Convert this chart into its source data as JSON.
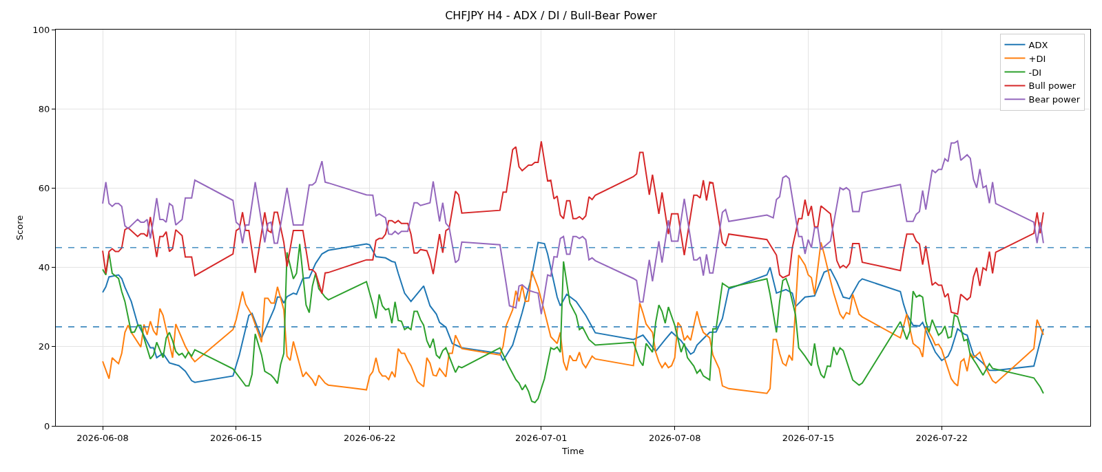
{
  "chart_data": {
    "type": "line",
    "title": "CHFJPY H4 - ADX / DI / Bull-Bear Power",
    "xlabel": "Time",
    "ylabel": "Score",
    "xlim": [
      "2026-06-05T13:00",
      "2026-07-29T19:00"
    ],
    "ylim": [
      0,
      100
    ],
    "yticks": [
      0,
      20,
      40,
      60,
      80,
      100
    ],
    "xticks": [
      "2026-06-08",
      "2026-06-15",
      "2026-06-22",
      "2026-07-01",
      "2026-07-08",
      "2026-07-15",
      "2026-07-22"
    ],
    "grid": true,
    "legend": "top right",
    "line_style": "solid",
    "ref_lines": [
      {
        "axis": "y",
        "value": 45,
        "color": "#1f77b4",
        "line_style": "dashed"
      },
      {
        "axis": "y",
        "value": 25,
        "color": "#1f77b4",
        "line_style": "dashed"
      }
    ],
    "series": [
      {
        "name": "ADX",
        "color": "#1f77b4",
        "x": [
          "2026-06-08T00:00",
          "2026-06-08T04:00",
          "2026-06-08T08:00",
          "2026-06-08T20:00",
          "2026-06-09T00:00",
          "2026-06-09T04:00",
          "2026-06-09T12:00",
          "2026-06-09T20:00",
          "2026-06-10T00:00",
          "2026-06-10T12:00",
          "2026-06-10T16:00",
          "2026-06-10T20:00",
          "2026-06-11T04:00",
          "2026-06-11T12:00",
          "2026-06-12T00:00",
          "2026-06-12T08:00",
          "2026-06-12T16:00",
          "2026-06-12T20:00",
          "2026-06-14T20:00",
          "2026-06-15T04:00",
          "2026-06-15T16:00",
          "2026-06-15T20:00",
          "2026-06-16T08:00",
          "2026-06-17T00:00",
          "2026-06-17T04:00",
          "2026-06-17T08:00",
          "2026-06-17T12:00",
          "2026-06-17T16:00",
          "2026-06-18T00:00",
          "2026-06-18T04:00",
          "2026-06-18T12:00",
          "2026-06-18T20:00",
          "2026-06-19T04:00",
          "2026-06-19T12:00",
          "2026-06-19T20:00",
          "2026-06-21T20:00",
          "2026-06-22T00:00",
          "2026-06-22T08:00",
          "2026-06-22T20:00",
          "2026-06-23T04:00",
          "2026-06-23T08:00",
          "2026-06-23T12:00",
          "2026-06-23T20:00",
          "2026-06-24T04:00",
          "2026-06-24T20:00",
          "2026-06-25T04:00",
          "2026-06-25T12:00",
          "2026-06-25T16:00",
          "2026-06-26T00:00",
          "2026-06-26T08:00",
          "2026-06-26T20:00",
          "2026-06-28T20:00",
          "2026-06-29T00:00",
          "2026-06-29T12:00",
          "2026-06-30T00:00",
          "2026-06-30T12:00",
          "2026-06-30T20:00",
          "2026-07-01T04:00",
          "2026-07-01T08:00",
          "2026-07-01T20:00",
          "2026-07-02T00:00",
          "2026-07-02T08:00",
          "2026-07-02T20:00",
          "2026-07-03T08:00",
          "2026-07-03T20:00",
          "2026-07-05T20:00",
          "2026-07-06T08:00",
          "2026-07-07T00:00",
          "2026-07-07T12:00",
          "2026-07-07T20:00",
          "2026-07-08T08:00",
          "2026-07-08T20:00",
          "2026-07-09T00:00",
          "2026-07-09T04:00",
          "2026-07-09T20:00",
          "2026-07-10T04:00",
          "2026-07-10T12:00",
          "2026-07-10T20:00",
          "2026-07-12T20:00",
          "2026-07-13T00:00",
          "2026-07-13T08:00",
          "2026-07-13T20:00",
          "2026-07-14T04:00",
          "2026-07-14T08:00",
          "2026-07-14T20:00",
          "2026-07-15T08:00",
          "2026-07-15T20:00",
          "2026-07-16T04:00",
          "2026-07-16T12:00",
          "2026-07-16T20:00",
          "2026-07-17T04:00",
          "2026-07-17T16:00",
          "2026-07-17T20:00",
          "2026-07-19T20:00",
          "2026-07-20T00:00",
          "2026-07-20T04:00",
          "2026-07-20T12:00",
          "2026-07-20T20:00",
          "2026-07-21T00:00",
          "2026-07-21T08:00",
          "2026-07-21T16:00",
          "2026-07-22T00:00",
          "2026-07-22T08:00",
          "2026-07-22T12:00",
          "2026-07-22T20:00",
          "2026-07-23T04:00",
          "2026-07-23T08:00",
          "2026-07-23T16:00",
          "2026-07-24T04:00",
          "2026-07-24T12:00",
          "2026-07-24T20:00",
          "2026-07-26T20:00",
          "2026-07-27T08:00"
        ],
        "values": [
          33.7,
          35.1,
          37.6,
          38.1,
          37.2,
          35,
          31.4,
          25.7,
          24.3,
          19.7,
          19.7,
          17.2,
          18.3,
          15.9,
          15.2,
          13.8,
          11.4,
          11,
          12.6,
          17.9,
          27.9,
          28.4,
          22.2,
          29.6,
          32.5,
          32.5,
          31,
          32.6,
          33.5,
          33.2,
          37.2,
          37.4,
          41,
          43.4,
          44.3,
          45.9,
          45.7,
          42.7,
          42.4,
          41.5,
          41.3,
          38.5,
          33.5,
          31.4,
          35.3,
          30.3,
          28.2,
          26.1,
          24.9,
          20.8,
          19.7,
          18.3,
          16.5,
          20.4,
          28.6,
          37.8,
          46.3,
          46,
          43.4,
          32.5,
          30.3,
          33.2,
          31.4,
          27.9,
          23.5,
          21.8,
          22.9,
          18.8,
          21.8,
          23.7,
          21.5,
          18.1,
          18.6,
          20.4,
          23.6,
          23.7,
          27.1,
          34.6,
          38.1,
          40,
          33.5,
          34.4,
          33.5,
          30.1,
          32.5,
          32.8,
          38.8,
          39.5,
          36.4,
          32.5,
          32.1,
          36.4,
          37.1,
          33.9,
          30.7,
          28.2,
          25.4,
          25.2,
          26.1,
          22.2,
          18.6,
          16.5,
          17.6,
          19.3,
          24.5,
          23.2,
          22.9,
          17.9,
          15.8,
          14,
          14,
          15.1,
          24.5
        ]
      },
      {
        "name": "+DI",
        "color": "#ff7f0e",
        "x": [
          "2026-06-08T00:00",
          "2026-06-08T08:00",
          "2026-06-08T12:00",
          "2026-06-08T16:00",
          "2026-06-08T20:00",
          "2026-06-09T00:00",
          "2026-06-09T04:00",
          "2026-06-09T08:00",
          "2026-06-09T12:00",
          "2026-06-10T00:00",
          "2026-06-10T04:00",
          "2026-06-10T08:00",
          "2026-06-10T12:00",
          "2026-06-10T16:00",
          "2026-06-10T20:00",
          "2026-06-11T00:00",
          "2026-06-11T04:00",
          "2026-06-11T16:00",
          "2026-06-11T20:00",
          "2026-06-12T08:00",
          "2026-06-12T16:00",
          "2026-06-12T20:00",
          "2026-06-14T20:00",
          "2026-06-15T00:00",
          "2026-06-15T08:00",
          "2026-06-15T12:00",
          "2026-06-15T20:00",
          "2026-06-16T08:00",
          "2026-06-16T12:00",
          "2026-06-16T16:00",
          "2026-06-16T20:00",
          "2026-06-17T00:00",
          "2026-06-17T04:00",
          "2026-06-17T12:00",
          "2026-06-17T16:00",
          "2026-06-17T20:00",
          "2026-06-18T00:00",
          "2026-06-18T12:00",
          "2026-06-18T16:00",
          "2026-06-19T00:00",
          "2026-06-19T04:00",
          "2026-06-19T08:00",
          "2026-06-19T16:00",
          "2026-06-19T20:00",
          "2026-06-21T20:00",
          "2026-06-22T00:00",
          "2026-06-22T04:00",
          "2026-06-22T08:00",
          "2026-06-22T12:00",
          "2026-06-22T16:00",
          "2026-06-22T20:00",
          "2026-06-23T00:00",
          "2026-06-23T04:00",
          "2026-06-23T08:00",
          "2026-06-23T12:00",
          "2026-06-23T16:00",
          "2026-06-23T20:00",
          "2026-06-24T00:00",
          "2026-06-24T04:00",
          "2026-06-24T12:00",
          "2026-06-24T20:00",
          "2026-06-25T00:00",
          "2026-06-25T04:00",
          "2026-06-25T08:00",
          "2026-06-25T12:00",
          "2026-06-25T16:00",
          "2026-06-26T00:00",
          "2026-06-26T04:00",
          "2026-06-26T08:00",
          "2026-06-26T12:00",
          "2026-06-26T20:00",
          "2026-06-28T20:00",
          "2026-06-29T00:00",
          "2026-06-29T04:00",
          "2026-06-29T12:00",
          "2026-06-29T16:00",
          "2026-06-29T20:00",
          "2026-06-30T00:00",
          "2026-06-30T04:00",
          "2026-06-30T08:00",
          "2026-06-30T12:00",
          "2026-06-30T20:00",
          "2026-07-01T04:00",
          "2026-07-01T12:00",
          "2026-07-01T20:00",
          "2026-07-02T00:00",
          "2026-07-02T04:00",
          "2026-07-02T08:00",
          "2026-07-02T12:00",
          "2026-07-02T16:00",
          "2026-07-02T20:00",
          "2026-07-03T00:00",
          "2026-07-03T04:00",
          "2026-07-03T08:00",
          "2026-07-03T16:00",
          "2026-07-03T20:00",
          "2026-07-05T20:00",
          "2026-07-06T04:00",
          "2026-07-06T08:00",
          "2026-07-06T12:00",
          "2026-07-06T20:00",
          "2026-07-07T00:00",
          "2026-07-07T04:00",
          "2026-07-07T08:00",
          "2026-07-07T12:00",
          "2026-07-07T16:00",
          "2026-07-07T20:00",
          "2026-07-08T00:00",
          "2026-07-08T04:00",
          "2026-07-08T08:00",
          "2026-07-08T12:00",
          "2026-07-08T16:00",
          "2026-07-08T20:00",
          "2026-07-09T04:00",
          "2026-07-09T08:00",
          "2026-07-09T12:00",
          "2026-07-09T20:00",
          "2026-07-10T00:00",
          "2026-07-10T08:00",
          "2026-07-10T12:00",
          "2026-07-10T20:00",
          "2026-07-12T20:00",
          "2026-07-13T00:00",
          "2026-07-13T04:00",
          "2026-07-13T08:00",
          "2026-07-13T12:00",
          "2026-07-13T16:00",
          "2026-07-13T20:00",
          "2026-07-14T00:00",
          "2026-07-14T04:00",
          "2026-07-14T12:00",
          "2026-07-14T20:00",
          "2026-07-15T00:00",
          "2026-07-15T04:00",
          "2026-07-15T08:00",
          "2026-07-15T16:00",
          "2026-07-15T20:00",
          "2026-07-16T04:00",
          "2026-07-16T08:00",
          "2026-07-16T16:00",
          "2026-07-16T20:00",
          "2026-07-17T00:00",
          "2026-07-17T04:00",
          "2026-07-17T08:00",
          "2026-07-17T16:00",
          "2026-07-17T20:00",
          "2026-07-19T20:00",
          "2026-07-20T04:00",
          "2026-07-20T12:00",
          "2026-07-20T20:00",
          "2026-07-21T00:00",
          "2026-07-21T04:00",
          "2026-07-21T12:00",
          "2026-07-21T16:00",
          "2026-07-21T20:00",
          "2026-07-22T00:00",
          "2026-07-22T12:00",
          "2026-07-22T16:00",
          "2026-07-22T20:00",
          "2026-07-23T00:00",
          "2026-07-23T04:00",
          "2026-07-23T08:00",
          "2026-07-23T12:00",
          "2026-07-23T16:00",
          "2026-07-24T00:00",
          "2026-07-24T08:00",
          "2026-07-24T16:00",
          "2026-07-24T20:00",
          "2026-07-26T20:00",
          "2026-07-27T00:00",
          "2026-07-27T08:00"
        ],
        "values": [
          16.3,
          11.9,
          17.2,
          16.4,
          15.7,
          18.3,
          23.6,
          25.4,
          23.6,
          19.9,
          25.6,
          23,
          26.4,
          24,
          22.9,
          29.6,
          27.9,
          17.2,
          25.7,
          20.1,
          17.2,
          16.2,
          24.3,
          26.8,
          33.9,
          30.7,
          27.9,
          21.1,
          32.2,
          32.2,
          31,
          31,
          35.1,
          29.3,
          17.6,
          16.5,
          21.3,
          12.4,
          13.5,
          11.6,
          10.1,
          12.8,
          10.8,
          10.3,
          9.1,
          12.6,
          13.7,
          17.2,
          13.7,
          12.6,
          12.6,
          11.7,
          13.7,
          12.3,
          19.5,
          18.3,
          18.3,
          16.5,
          15.2,
          11.2,
          9.9,
          17.2,
          15.8,
          12.8,
          12.6,
          14.5,
          12.4,
          18.3,
          18.3,
          22.9,
          19.5,
          17.9,
          20.1,
          25.4,
          29.3,
          34.1,
          31.4,
          35.5,
          31.4,
          31.5,
          39.1,
          34.9,
          28.9,
          22.5,
          20.8,
          23.6,
          16.2,
          14,
          17.8,
          16.5,
          16.5,
          18.6,
          15.8,
          14.7,
          17.6,
          16.9,
          15.2,
          31,
          28.5,
          25.7,
          23.6,
          18.6,
          16.2,
          14.7,
          15.9,
          14.7,
          15.2,
          17.2,
          26.1,
          25,
          21.6,
          22.7,
          21.6,
          28.9,
          25.7,
          23.6,
          22.2,
          17.9,
          14.4,
          10.1,
          9.4,
          8.2,
          9.4,
          21.8,
          21.8,
          18.3,
          15.8,
          15.2,
          17.9,
          16.5,
          43.1,
          40.6,
          38.1,
          37.4,
          33.2,
          46.3,
          43.4,
          36.7,
          33.5,
          28.2,
          27.1,
          28.6,
          28.2,
          33.2,
          28.2,
          27.5,
          22.2,
          28.2,
          20.8,
          19.5,
          17.4,
          25,
          22.2,
          20.4,
          20.6,
          19.3,
          11.9,
          10.8,
          10.1,
          16.2,
          16.9,
          13.8,
          18.3,
          17.2,
          18.6,
          14.5,
          11.4,
          10.8,
          19.5,
          26.8,
          23
        ]
      },
      {
        "name": "-DI",
        "color": "#2ca02c",
        "x": [
          "2026-06-08T00:00",
          "2026-06-08T04:00",
          "2026-06-08T08:00",
          "2026-06-08T12:00",
          "2026-06-08T20:00",
          "2026-06-09T00:00",
          "2026-06-09T04:00",
          "2026-06-09T12:00",
          "2026-06-09T16:00",
          "2026-06-09T20:00",
          "2026-06-10T00:00",
          "2026-06-10T04:00",
          "2026-06-10T12:00",
          "2026-06-10T16:00",
          "2026-06-10T20:00",
          "2026-06-11T04:00",
          "2026-06-11T08:00",
          "2026-06-11T12:00",
          "2026-06-11T16:00",
          "2026-06-11T20:00",
          "2026-06-12T00:00",
          "2026-06-12T04:00",
          "2026-06-12T08:00",
          "2026-06-12T12:00",
          "2026-06-12T16:00",
          "2026-06-12T20:00",
          "2026-06-14T20:00",
          "2026-06-15T08:00",
          "2026-06-15T12:00",
          "2026-06-15T16:00",
          "2026-06-15T20:00",
          "2026-06-16T00:00",
          "2026-06-16T08:00",
          "2026-06-16T12:00",
          "2026-06-16T20:00",
          "2026-06-17T00:00",
          "2026-06-17T04:00",
          "2026-06-17T08:00",
          "2026-06-17T12:00",
          "2026-06-17T16:00",
          "2026-06-18T00:00",
          "2026-06-18T04:00",
          "2026-06-18T08:00",
          "2026-06-18T16:00",
          "2026-06-18T20:00",
          "2026-06-19T00:00",
          "2026-06-19T04:00",
          "2026-06-19T08:00",
          "2026-06-19T16:00",
          "2026-06-19T20:00",
          "2026-06-21T20:00",
          "2026-06-22T04:00",
          "2026-06-22T08:00",
          "2026-06-22T12:00",
          "2026-06-22T16:00",
          "2026-06-22T20:00",
          "2026-06-23T00:00",
          "2026-06-23T04:00",
          "2026-06-23T08:00",
          "2026-06-23T12:00",
          "2026-06-23T16:00",
          "2026-06-23T20:00",
          "2026-06-24T00:00",
          "2026-06-24T04:00",
          "2026-06-24T08:00",
          "2026-06-24T12:00",
          "2026-06-24T16:00",
          "2026-06-24T20:00",
          "2026-06-25T00:00",
          "2026-06-25T04:00",
          "2026-06-25T08:00",
          "2026-06-25T12:00",
          "2026-06-25T16:00",
          "2026-06-25T20:00",
          "2026-06-26T00:00",
          "2026-06-26T04:00",
          "2026-06-26T12:00",
          "2026-06-26T16:00",
          "2026-06-26T20:00",
          "2026-06-28T20:00",
          "2026-06-29T08:00",
          "2026-06-29T16:00",
          "2026-06-29T20:00",
          "2026-06-30T00:00",
          "2026-06-30T04:00",
          "2026-06-30T08:00",
          "2026-06-30T12:00",
          "2026-06-30T16:00",
          "2026-06-30T20:00",
          "2026-07-01T04:00",
          "2026-07-01T12:00",
          "2026-07-01T16:00",
          "2026-07-01T20:00",
          "2026-07-02T00:00",
          "2026-07-02T04:00",
          "2026-07-02T12:00",
          "2026-07-02T20:00",
          "2026-07-03T00:00",
          "2026-07-03T04:00",
          "2026-07-03T12:00",
          "2026-07-03T20:00",
          "2026-07-05T20:00",
          "2026-07-06T04:00",
          "2026-07-06T08:00",
          "2026-07-06T12:00",
          "2026-07-06T20:00",
          "2026-07-07T00:00",
          "2026-07-07T04:00",
          "2026-07-07T08:00",
          "2026-07-07T12:00",
          "2026-07-07T16:00",
          "2026-07-08T00:00",
          "2026-07-08T08:00",
          "2026-07-08T12:00",
          "2026-07-08T16:00",
          "2026-07-09T00:00",
          "2026-07-09T04:00",
          "2026-07-09T08:00",
          "2026-07-09T12:00",
          "2026-07-09T20:00",
          "2026-07-10T00:00",
          "2026-07-10T04:00",
          "2026-07-10T12:00",
          "2026-07-10T20:00",
          "2026-07-12T20:00",
          "2026-07-13T00:00",
          "2026-07-13T08:00",
          "2026-07-13T12:00",
          "2026-07-13T16:00",
          "2026-07-13T20:00",
          "2026-07-14T00:00",
          "2026-07-14T08:00",
          "2026-07-14T12:00",
          "2026-07-14T20:00",
          "2026-07-15T04:00",
          "2026-07-15T08:00",
          "2026-07-15T12:00",
          "2026-07-15T16:00",
          "2026-07-15T20:00",
          "2026-07-16T00:00",
          "2026-07-16T04:00",
          "2026-07-16T08:00",
          "2026-07-16T12:00",
          "2026-07-16T16:00",
          "2026-07-16T20:00",
          "2026-07-17T08:00",
          "2026-07-17T16:00",
          "2026-07-17T20:00",
          "2026-07-19T20:00",
          "2026-07-20T04:00",
          "2026-07-20T08:00",
          "2026-07-20T12:00",
          "2026-07-20T16:00",
          "2026-07-20T20:00",
          "2026-07-21T00:00",
          "2026-07-21T04:00",
          "2026-07-21T08:00",
          "2026-07-21T12:00",
          "2026-07-21T20:00",
          "2026-07-22T00:00",
          "2026-07-22T04:00",
          "2026-07-22T08:00",
          "2026-07-22T12:00",
          "2026-07-22T16:00",
          "2026-07-22T20:00",
          "2026-07-23T00:00",
          "2026-07-23T04:00",
          "2026-07-23T08:00",
          "2026-07-23T12:00",
          "2026-07-23T20:00",
          "2026-07-24T04:00",
          "2026-07-24T12:00",
          "2026-07-24T16:00",
          "2026-07-26T20:00",
          "2026-07-27T04:00",
          "2026-07-27T08:00"
        ],
        "values": [
          39.5,
          38.1,
          43.6,
          38.5,
          37.2,
          33.9,
          31.4,
          23.6,
          23.7,
          25.4,
          25.4,
          22.2,
          16.9,
          17.9,
          21.1,
          17.2,
          22.2,
          23.6,
          21.5,
          18.8,
          17.9,
          18.3,
          17.2,
          18.6,
          17.6,
          19.2,
          14.4,
          11.2,
          10.1,
          10.1,
          13,
          23.2,
          17.9,
          13.8,
          12.8,
          11.9,
          10.7,
          15.5,
          18.3,
          43.8,
          37.1,
          38.5,
          45.9,
          30.5,
          28.6,
          35.3,
          38.5,
          34.6,
          32.5,
          31.8,
          36.4,
          30.7,
          27.1,
          33.2,
          30.3,
          29.3,
          29.6,
          25.9,
          31.3,
          26.6,
          26.4,
          24.3,
          24.9,
          24.3,
          28.9,
          28.9,
          26.8,
          25.4,
          21.5,
          19.7,
          22,
          17.9,
          17.1,
          19,
          19.7,
          17.6,
          13.5,
          15,
          14.7,
          19.7,
          14.7,
          11.7,
          10.8,
          9.1,
          10.3,
          8.7,
          6.2,
          5.9,
          6.9,
          11.9,
          19.7,
          19.3,
          19.9,
          18.6,
          41.5,
          31,
          27.9,
          24.3,
          24.9,
          21.8,
          20.4,
          21.1,
          16.4,
          15.2,
          20.8,
          18.6,
          26.1,
          30.5,
          28.9,
          25.9,
          30,
          25.4,
          18.6,
          20.8,
          17.2,
          15.1,
          13.3,
          14.2,
          12.6,
          11.6,
          24.5,
          24.5,
          36,
          34.9,
          37.1,
          33.2,
          23.6,
          31.4,
          36.7,
          37.2,
          34.9,
          28,
          19.7,
          17.6,
          15.2,
          20.8,
          15.5,
          13,
          12.1,
          15.1,
          15,
          19.9,
          17.9,
          19.7,
          19,
          11.6,
          10.3,
          10.8,
          26.3,
          21.8,
          24,
          34,
          32.5,
          33,
          32.5,
          26.4,
          23.6,
          26.8,
          22.9,
          23.6,
          25.2,
          22.2,
          22.5,
          28,
          27.5,
          24.7,
          21.5,
          21.8,
          17.9,
          15.5,
          12.8,
          15.7,
          14.5,
          12.1,
          9.8,
          8.2
        ]
      },
      {
        "name": "Bull power",
        "color": "#d62728",
        "x": [
          "2026-06-08T00:00",
          "2026-06-08T04:00",
          "2026-06-08T08:00",
          "2026-06-08T12:00",
          "2026-06-08T16:00",
          "2026-06-08T20:00",
          "2026-06-09T00:00",
          "2026-06-09T04:00",
          "2026-06-09T08:00",
          "2026-06-09T20:00",
          "2026-06-10T00:00",
          "2026-06-10T04:00",
          "2026-06-10T08:00",
          "2026-06-10T12:00",
          "2026-06-10T20:00",
          "2026-06-11T00:00",
          "2026-06-11T04:00",
          "2026-06-11T08:00",
          "2026-06-11T12:00",
          "2026-06-11T16:00",
          "2026-06-11T20:00",
          "2026-06-12T04:00",
          "2026-06-12T08:00",
          "2026-06-12T16:00",
          "2026-06-12T20:00",
          "2026-06-14T20:00",
          "2026-06-15T00:00",
          "2026-06-15T04:00",
          "2026-06-15T08:00",
          "2026-06-15T12:00",
          "2026-06-15T16:00",
          "2026-06-16T00:00",
          "2026-06-16T12:00",
          "2026-06-16T16:00",
          "2026-06-16T20:00",
          "2026-06-17T00:00",
          "2026-06-17T04:00",
          "2026-06-17T12:00",
          "2026-06-17T16:00",
          "2026-06-18T00:00",
          "2026-06-18T12:00",
          "2026-06-18T20:00",
          "2026-06-19T00:00",
          "2026-06-19T04:00",
          "2026-06-19T12:00",
          "2026-06-19T16:00",
          "2026-06-19T20:00",
          "2026-06-21T20:00",
          "2026-06-22T04:00",
          "2026-06-22T08:00",
          "2026-06-22T12:00",
          "2026-06-22T16:00",
          "2026-06-22T20:00",
          "2026-06-23T00:00",
          "2026-06-23T04:00",
          "2026-06-23T08:00",
          "2026-06-23T12:00",
          "2026-06-23T16:00",
          "2026-06-24T00:00",
          "2026-06-24T04:00",
          "2026-06-24T08:00",
          "2026-06-24T12:00",
          "2026-06-24T16:00",
          "2026-06-25T00:00",
          "2026-06-25T04:00",
          "2026-06-25T08:00",
          "2026-06-25T16:00",
          "2026-06-25T20:00",
          "2026-06-26T00:00",
          "2026-06-26T04:00",
          "2026-06-26T12:00",
          "2026-06-26T16:00",
          "2026-06-26T20:00",
          "2026-06-28T20:00",
          "2026-06-29T00:00",
          "2026-06-29T04:00",
          "2026-06-29T12:00",
          "2026-06-29T16:00",
          "2026-06-29T20:00",
          "2026-06-30T00:00",
          "2026-06-30T08:00",
          "2026-06-30T12:00",
          "2026-06-30T16:00",
          "2026-06-30T20:00",
          "2026-07-01T00:00",
          "2026-07-01T08:00",
          "2026-07-01T12:00",
          "2026-07-01T16:00",
          "2026-07-01T20:00",
          "2026-07-02T00:00",
          "2026-07-02T04:00",
          "2026-07-02T08:00",
          "2026-07-02T12:00",
          "2026-07-02T16:00",
          "2026-07-02T20:00",
          "2026-07-03T00:00",
          "2026-07-03T04:00",
          "2026-07-03T08:00",
          "2026-07-03T12:00",
          "2026-07-03T16:00",
          "2026-07-03T20:00",
          "2026-07-05T20:00",
          "2026-07-06T00:00",
          "2026-07-06T04:00",
          "2026-07-06T08:00",
          "2026-07-06T16:00",
          "2026-07-06T20:00",
          "2026-07-07T04:00",
          "2026-07-07T08:00",
          "2026-07-07T16:00",
          "2026-07-07T20:00",
          "2026-07-08T04:00",
          "2026-07-08T12:00",
          "2026-07-09T00:00",
          "2026-07-09T04:00",
          "2026-07-09T08:00",
          "2026-07-09T12:00",
          "2026-07-09T16:00",
          "2026-07-09T20:00",
          "2026-07-10T00:00",
          "2026-07-10T12:00",
          "2026-07-10T16:00",
          "2026-07-10T20:00",
          "2026-07-12T20:00",
          "2026-07-13T08:00",
          "2026-07-13T12:00",
          "2026-07-13T16:00",
          "2026-07-14T00:00",
          "2026-07-14T04:00",
          "2026-07-14T12:00",
          "2026-07-14T16:00",
          "2026-07-14T20:00",
          "2026-07-15T00:00",
          "2026-07-15T04:00",
          "2026-07-15T08:00",
          "2026-07-15T12:00",
          "2026-07-15T16:00",
          "2026-07-16T04:00",
          "2026-07-16T12:00",
          "2026-07-16T16:00",
          "2026-07-16T20:00",
          "2026-07-17T00:00",
          "2026-07-17T04:00",
          "2026-07-17T08:00",
          "2026-07-17T16:00",
          "2026-07-17T20:00",
          "2026-07-19T20:00",
          "2026-07-20T00:00",
          "2026-07-20T04:00",
          "2026-07-20T12:00",
          "2026-07-20T16:00",
          "2026-07-20T20:00",
          "2026-07-21T00:00",
          "2026-07-21T04:00",
          "2026-07-21T12:00",
          "2026-07-21T16:00",
          "2026-07-21T20:00",
          "2026-07-22T00:00",
          "2026-07-22T04:00",
          "2026-07-22T08:00",
          "2026-07-22T12:00",
          "2026-07-22T20:00",
          "2026-07-23T00:00",
          "2026-07-23T08:00",
          "2026-07-23T12:00",
          "2026-07-23T16:00",
          "2026-07-23T20:00",
          "2026-07-24T00:00",
          "2026-07-24T04:00",
          "2026-07-24T08:00",
          "2026-07-24T12:00",
          "2026-07-24T16:00",
          "2026-07-24T20:00",
          "2026-07-26T20:00",
          "2026-07-27T00:00",
          "2026-07-27T04:00",
          "2026-07-27T08:00"
        ],
        "values": [
          44.2,
          38.5,
          44,
          44.7,
          44,
          44,
          44.9,
          49.5,
          50,
          47.8,
          48.5,
          48.5,
          47.8,
          52.7,
          42.6,
          47.8,
          47.8,
          49,
          44,
          44.7,
          49.5,
          48,
          42.6,
          42.6,
          37.9,
          43.4,
          49.3,
          49.8,
          53.9,
          49.3,
          49.3,
          38.6,
          53.9,
          49.3,
          48.8,
          53.9,
          53.9,
          46.3,
          40.2,
          49.3,
          49.3,
          39.4,
          39.4,
          38.6,
          33.4,
          38.6,
          38.7,
          41.9,
          41.9,
          46.8,
          47.3,
          47.3,
          48.4,
          51.8,
          51.8,
          51.2,
          51.8,
          51.1,
          51.1,
          48.4,
          43.6,
          43.6,
          44.5,
          44.2,
          42,
          38.3,
          48.4,
          43.7,
          49.3,
          49.8,
          59.2,
          58.3,
          53.7,
          54.4,
          59,
          59,
          69.7,
          70.4,
          65.4,
          64.4,
          65.8,
          65.8,
          66.5,
          66.5,
          71.8,
          61.8,
          62,
          57.3,
          58,
          53.2,
          52.3,
          56.8,
          56.8,
          52.3,
          52.3,
          52.8,
          52.1,
          53,
          57.8,
          57.1,
          58.2,
          62.9,
          63.6,
          69,
          69,
          58.3,
          63.4,
          53.5,
          58.9,
          48.4,
          53.5,
          53.5,
          43.1,
          58.2,
          58.2,
          57.5,
          62,
          56.9,
          61.5,
          61.3,
          46.3,
          45.4,
          48.4,
          47,
          43.1,
          38.1,
          37.4,
          38.1,
          45,
          52.3,
          52.3,
          57.1,
          53,
          55.5,
          50.2,
          50.2,
          55.5,
          53.5,
          41.7,
          39.9,
          40.5,
          39.9,
          41,
          46,
          46,
          41.3,
          39.2,
          44.2,
          48.4,
          48.4,
          46.6,
          45.9,
          40.7,
          45.4,
          35.5,
          36.2,
          35.5,
          35.5,
          32.5,
          33.4,
          28.7,
          28.2,
          33.2,
          31.8,
          32.5,
          37.6,
          39.9,
          35.3,
          39.9,
          39.3,
          44,
          38.5,
          43.8,
          48.6,
          53.9,
          48.6,
          53.9
        ]
      },
      {
        "name": "Bear power",
        "color": "#9467bd",
        "x": [
          "2026-06-08T00:00",
          "2026-06-08T04:00",
          "2026-06-08T08:00",
          "2026-06-08T12:00",
          "2026-06-08T16:00",
          "2026-06-08T20:00",
          "2026-06-09T00:00",
          "2026-06-09T04:00",
          "2026-06-09T08:00",
          "2026-06-09T20:00",
          "2026-06-10T00:00",
          "2026-06-10T04:00",
          "2026-06-10T08:00",
          "2026-06-10T12:00",
          "2026-06-10T16:00",
          "2026-06-10T20:00",
          "2026-06-11T00:00",
          "2026-06-11T04:00",
          "2026-06-11T08:00",
          "2026-06-11T12:00",
          "2026-06-11T16:00",
          "2026-06-11T20:00",
          "2026-06-12T04:00",
          "2026-06-12T08:00",
          "2026-06-12T16:00",
          "2026-06-12T20:00",
          "2026-06-14T20:00",
          "2026-06-15T00:00",
          "2026-06-15T04:00",
          "2026-06-15T08:00",
          "2026-06-15T12:00",
          "2026-06-15T16:00",
          "2026-06-16T00:00",
          "2026-06-16T12:00",
          "2026-06-16T16:00",
          "2026-06-16T20:00",
          "2026-06-17T00:00",
          "2026-06-17T04:00",
          "2026-06-17T16:00",
          "2026-06-18T00:00",
          "2026-06-18T12:00",
          "2026-06-18T20:00",
          "2026-06-19T00:00",
          "2026-06-19T04:00",
          "2026-06-19T12:00",
          "2026-06-19T16:00",
          "2026-06-19T20:00",
          "2026-06-21T20:00",
          "2026-06-22T04:00",
          "2026-06-22T08:00",
          "2026-06-22T12:00",
          "2026-06-22T20:00",
          "2026-06-23T00:00",
          "2026-06-23T04:00",
          "2026-06-23T08:00",
          "2026-06-23T12:00",
          "2026-06-23T16:00",
          "2026-06-24T00:00",
          "2026-06-24T08:00",
          "2026-06-24T12:00",
          "2026-06-24T16:00",
          "2026-06-25T04:00",
          "2026-06-25T08:00",
          "2026-06-25T16:00",
          "2026-06-25T20:00",
          "2026-06-26T00:00",
          "2026-06-26T04:00",
          "2026-06-26T12:00",
          "2026-06-26T16:00",
          "2026-06-26T20:00",
          "2026-06-28T20:00",
          "2026-06-29T04:00",
          "2026-06-29T08:00",
          "2026-06-29T16:00",
          "2026-06-29T20:00",
          "2026-06-30T00:00",
          "2026-06-30T08:00",
          "2026-06-30T16:00",
          "2026-06-30T20:00",
          "2026-07-01T00:00",
          "2026-07-01T08:00",
          "2026-07-01T12:00",
          "2026-07-01T16:00",
          "2026-07-01T20:00",
          "2026-07-02T00:00",
          "2026-07-02T04:00",
          "2026-07-02T08:00",
          "2026-07-02T12:00",
          "2026-07-02T16:00",
          "2026-07-02T20:00",
          "2026-07-03T00:00",
          "2026-07-03T04:00",
          "2026-07-03T08:00",
          "2026-07-03T12:00",
          "2026-07-03T16:00",
          "2026-07-03T20:00",
          "2026-07-05T20:00",
          "2026-07-06T00:00",
          "2026-07-06T04:00",
          "2026-07-06T08:00",
          "2026-07-06T16:00",
          "2026-07-06T20:00",
          "2026-07-07T04:00",
          "2026-07-07T08:00",
          "2026-07-07T16:00",
          "2026-07-07T20:00",
          "2026-07-08T04:00",
          "2026-07-08T12:00",
          "2026-07-09T00:00",
          "2026-07-09T04:00",
          "2026-07-09T08:00",
          "2026-07-09T12:00",
          "2026-07-09T16:00",
          "2026-07-09T20:00",
          "2026-07-10T00:00",
          "2026-07-10T12:00",
          "2026-07-10T16:00",
          "2026-07-10T20:00",
          "2026-07-12T20:00",
          "2026-07-13T04:00",
          "2026-07-13T08:00",
          "2026-07-13T12:00",
          "2026-07-13T16:00",
          "2026-07-13T20:00",
          "2026-07-14T00:00",
          "2026-07-14T12:00",
          "2026-07-14T16:00",
          "2026-07-14T20:00",
          "2026-07-15T00:00",
          "2026-07-15T04:00",
          "2026-07-15T08:00",
          "2026-07-15T12:00",
          "2026-07-15T16:00",
          "2026-07-16T04:00",
          "2026-07-16T16:00",
          "2026-07-16T20:00",
          "2026-07-17T00:00",
          "2026-07-17T04:00",
          "2026-07-17T08:00",
          "2026-07-17T16:00",
          "2026-07-17T20:00",
          "2026-07-19T20:00",
          "2026-07-20T04:00",
          "2026-07-20T12:00",
          "2026-07-20T16:00",
          "2026-07-20T20:00",
          "2026-07-21T00:00",
          "2026-07-21T04:00",
          "2026-07-21T12:00",
          "2026-07-21T16:00",
          "2026-07-21T20:00",
          "2026-07-22T00:00",
          "2026-07-22T04:00",
          "2026-07-22T08:00",
          "2026-07-22T12:00",
          "2026-07-22T16:00",
          "2026-07-22T20:00",
          "2026-07-23T00:00",
          "2026-07-23T08:00",
          "2026-07-23T12:00",
          "2026-07-23T16:00",
          "2026-07-23T20:00",
          "2026-07-24T00:00",
          "2026-07-24T04:00",
          "2026-07-24T08:00",
          "2026-07-24T12:00",
          "2026-07-24T16:00",
          "2026-07-24T20:00",
          "2026-07-26T20:00",
          "2026-07-27T00:00",
          "2026-07-27T04:00",
          "2026-07-27T08:00"
        ],
        "values": [
          56.1,
          61.5,
          56.1,
          55.4,
          56.1,
          56.1,
          55.4,
          50.5,
          49.8,
          52.1,
          51.4,
          51.4,
          52.1,
          47.3,
          52,
          57.5,
          52.1,
          52.1,
          51.4,
          56.1,
          55.5,
          50.7,
          52.1,
          57.5,
          57.5,
          62,
          56.9,
          51.4,
          50.7,
          46.1,
          50.7,
          50.7,
          61.5,
          46.3,
          51.1,
          51.4,
          46.1,
          46.1,
          60.1,
          50.7,
          50.7,
          60.8,
          60.8,
          61.5,
          66.8,
          61.5,
          61.3,
          58.3,
          58.2,
          53,
          53.5,
          52.5,
          48.4,
          48.3,
          49.1,
          48.4,
          49.1,
          49.1,
          56.3,
          56.3,
          55.6,
          56.3,
          61.7,
          51.6,
          56.3,
          51.1,
          50.2,
          41.2,
          41.9,
          46.4,
          45.7,
          35.6,
          30.3,
          29.8,
          35.3,
          35.6,
          34.2,
          33.7,
          33.5,
          28.2,
          38.1,
          37.8,
          42.7,
          42.6,
          47.3,
          47.8,
          43.3,
          43.3,
          47.8,
          47.8,
          47.3,
          47.8,
          47,
          41.9,
          42.4,
          41.7,
          37.2,
          36.7,
          31.3,
          31.3,
          41.9,
          36.5,
          46.6,
          41.2,
          51.9,
          46.6,
          46.6,
          57.3,
          41.9,
          41.9,
          42.6,
          37.9,
          43.3,
          38.6,
          38.6,
          53.9,
          54.6,
          51.6,
          53.2,
          52.5,
          57.1,
          57.8,
          62.6,
          63.1,
          62.4,
          47.8,
          47.8,
          43.4,
          47,
          45,
          50,
          50,
          44.5,
          46.6,
          60.1,
          59.6,
          60.1,
          59.4,
          54.1,
          54.1,
          58.9,
          60.9,
          51.6,
          51.6,
          53.4,
          54.1,
          59.4,
          54.6,
          64.6,
          63.9,
          64.7,
          64.7,
          67.4,
          66.7,
          71.4,
          71.4,
          71.9,
          67,
          68.4,
          67.5,
          62.2,
          60.1,
          64.8,
          60.1,
          60.6,
          56.2,
          61.5,
          56.1,
          51.4,
          46.1,
          51.4,
          46.1
        ]
      }
    ]
  }
}
